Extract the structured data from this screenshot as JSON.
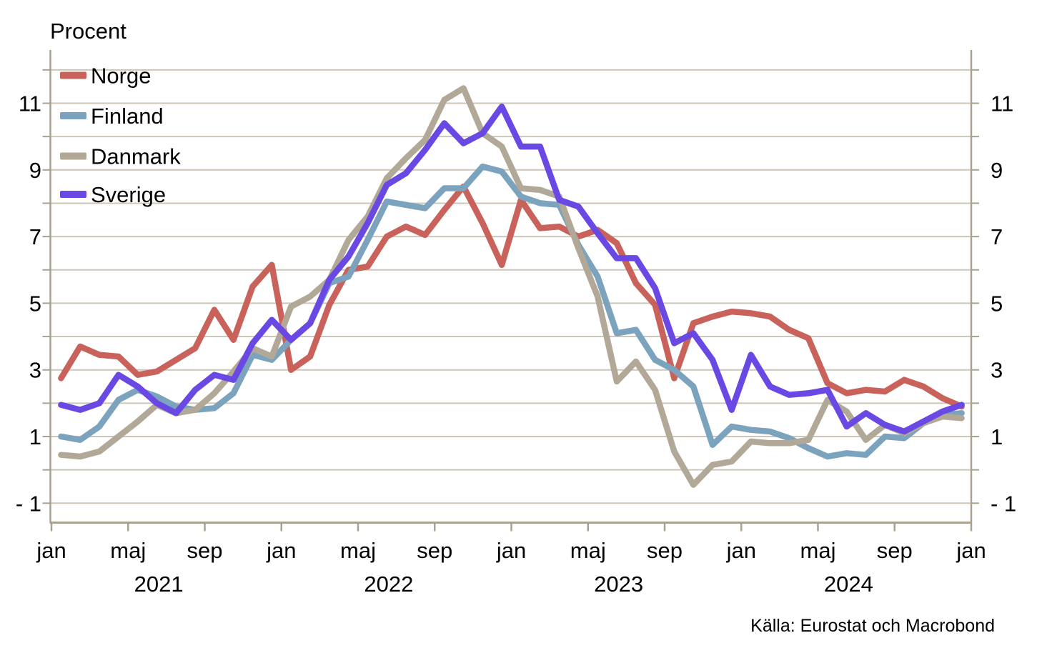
{
  "title": "Procent",
  "source": "Källa: Eurostat  och Macrobond",
  "colors": {
    "norge": "#c8625a",
    "finland": "#7ca3bd",
    "danmark": "#b2a897",
    "sverige": "#6948e3",
    "gridline": "#cdc6b9",
    "axis": "#aaa191",
    "text": "#000000"
  },
  "legend": [
    {
      "label": "Norge"
    },
    {
      "label": "Finland"
    },
    {
      "label": "Danmark"
    },
    {
      "label": "Sverige"
    }
  ],
  "y_axis": {
    "tick_values": [
      11,
      9,
      7,
      5,
      3,
      1,
      -1
    ],
    "tick_labels_left": [
      "11",
      "9",
      "7",
      "5",
      "3",
      "1",
      "- 1"
    ],
    "tick_labels_right": [
      "11",
      "9",
      "7",
      "5",
      "3",
      "1",
      "- 1"
    ],
    "gridline_values": [
      -1,
      0,
      1,
      2,
      3,
      4,
      5,
      6,
      7,
      8,
      9,
      10,
      11,
      12
    ]
  },
  "x_axis": {
    "tick_month_indices": [
      0,
      4,
      8,
      12,
      16,
      20,
      24,
      28,
      32,
      36,
      40,
      44,
      48
    ],
    "tick_labels": [
      "jan",
      "maj",
      "sep",
      "jan",
      "maj",
      "sep",
      "jan",
      "maj",
      "sep",
      "jan",
      "maj",
      "sep",
      "jan"
    ],
    "year_labels": [
      "2021",
      "2022",
      "2023",
      "2024"
    ]
  },
  "chart_data": {
    "type": "line",
    "title": "Procent",
    "ylabel": "Procent",
    "xlabel": "",
    "ylim": [
      -1.6,
      12.2
    ],
    "grid": "horizontal",
    "legend_position": "top-left",
    "source": "Källa: Eurostat  och Macrobond",
    "x": [
      "2021-01",
      "2021-02",
      "2021-03",
      "2021-04",
      "2021-05",
      "2021-06",
      "2021-07",
      "2021-08",
      "2021-09",
      "2021-10",
      "2021-11",
      "2021-12",
      "2022-01",
      "2022-02",
      "2022-03",
      "2022-04",
      "2022-05",
      "2022-06",
      "2022-07",
      "2022-08",
      "2022-09",
      "2022-10",
      "2022-11",
      "2022-12",
      "2023-01",
      "2023-02",
      "2023-03",
      "2023-04",
      "2023-05",
      "2023-06",
      "2023-07",
      "2023-08",
      "2023-09",
      "2023-10",
      "2023-11",
      "2023-12",
      "2024-01",
      "2024-02",
      "2024-03",
      "2024-04",
      "2024-05",
      "2024-06",
      "2024-07",
      "2024-08",
      "2024-09",
      "2024-10",
      "2024-11",
      "2024-12"
    ],
    "series": [
      {
        "name": "Norge",
        "color_key": "norge",
        "values": [
          2.75,
          3.7,
          3.45,
          3.4,
          2.85,
          2.95,
          3.3,
          3.65,
          4.8,
          3.9,
          5.5,
          6.15,
          3.0,
          3.4,
          4.95,
          6.0,
          6.1,
          7.0,
          7.3,
          7.05,
          7.8,
          8.5,
          7.4,
          6.15,
          8.1,
          7.25,
          7.3,
          7.0,
          7.2,
          6.8,
          5.6,
          4.95,
          2.75,
          4.4,
          4.6,
          4.75,
          4.7,
          4.6,
          4.2,
          3.95,
          2.6,
          2.3,
          2.4,
          2.35,
          2.7,
          2.5,
          2.15,
          1.9
        ]
      },
      {
        "name": "Finland",
        "color_key": "finland",
        "values": [
          1.0,
          0.9,
          1.3,
          2.1,
          2.4,
          2.2,
          1.9,
          1.8,
          1.85,
          2.3,
          3.45,
          3.3,
          3.9,
          4.4,
          5.6,
          5.8,
          6.9,
          8.05,
          7.95,
          7.85,
          8.45,
          8.45,
          9.1,
          8.95,
          8.2,
          8.0,
          7.95,
          6.75,
          5.8,
          4.1,
          4.2,
          3.3,
          3.0,
          2.5,
          0.75,
          1.3,
          1.2,
          1.15,
          0.95,
          0.65,
          0.4,
          0.5,
          0.45,
          1.0,
          0.95,
          1.4,
          1.65,
          1.7
        ]
      },
      {
        "name": "Danmark",
        "color_key": "danmark",
        "values": [
          0.45,
          0.4,
          0.55,
          1.0,
          1.45,
          1.95,
          1.7,
          1.8,
          2.3,
          2.95,
          3.65,
          3.4,
          4.9,
          5.2,
          5.7,
          6.9,
          7.6,
          8.75,
          9.35,
          9.9,
          11.1,
          11.45,
          10.1,
          9.7,
          8.45,
          8.4,
          8.2,
          6.65,
          5.2,
          2.65,
          3.25,
          2.4,
          0.55,
          -0.45,
          0.15,
          0.25,
          0.85,
          0.8,
          0.8,
          0.9,
          2.1,
          1.75,
          0.9,
          1.35,
          1.1,
          1.4,
          1.6,
          1.55
        ]
      },
      {
        "name": "Sverige",
        "color_key": "sverige",
        "values": [
          1.95,
          1.8,
          2.0,
          2.85,
          2.5,
          2.0,
          1.7,
          2.4,
          2.85,
          2.7,
          3.8,
          4.5,
          3.9,
          4.4,
          5.7,
          6.4,
          7.4,
          8.55,
          8.9,
          9.6,
          10.4,
          9.8,
          10.1,
          10.9,
          9.7,
          9.7,
          8.1,
          7.9,
          7.1,
          6.35,
          6.35,
          5.45,
          3.8,
          4.1,
          3.3,
          1.8,
          3.45,
          2.5,
          2.25,
          2.3,
          2.4,
          1.3,
          1.7,
          1.35,
          1.15,
          1.45,
          1.75,
          1.95
        ]
      }
    ]
  }
}
